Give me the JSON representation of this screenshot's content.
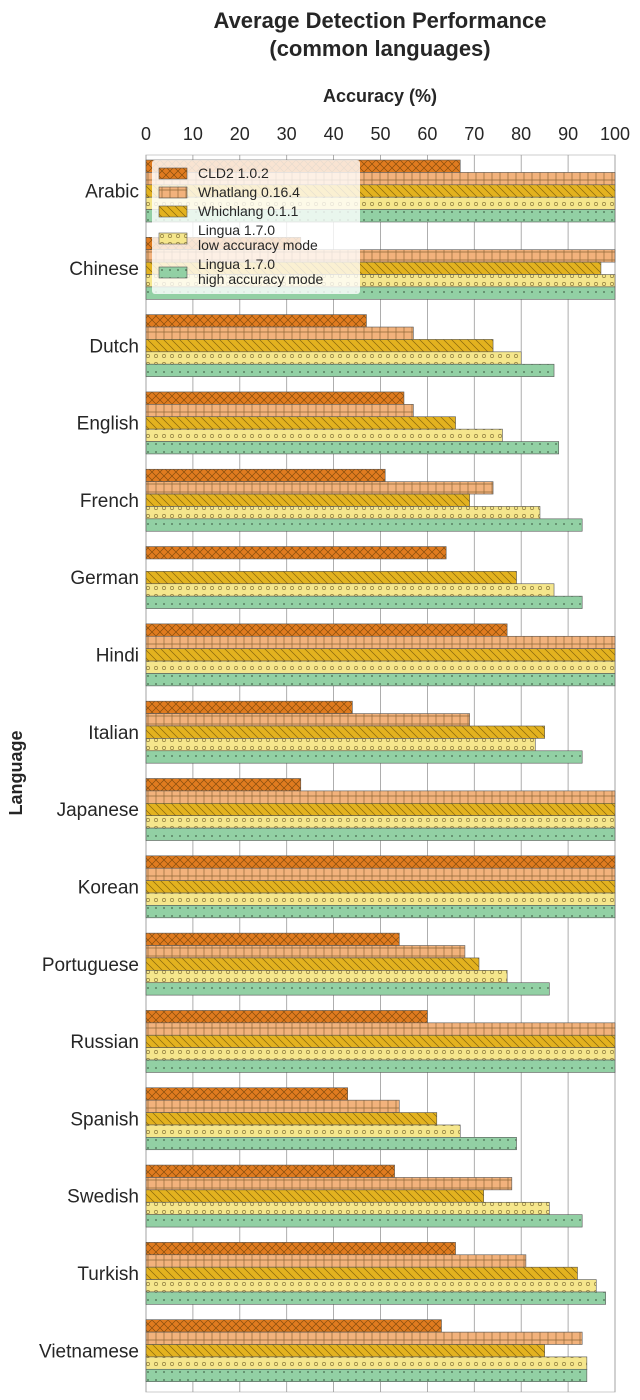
{
  "chart_data": {
    "type": "hbar",
    "title": "Average Detection Performance\n(common languages)",
    "x_label": "Accuracy (%)",
    "y_label": "Language",
    "categories": [
      "Arabic",
      "Chinese",
      "Dutch",
      "English",
      "French",
      "German",
      "Hindi",
      "Italian",
      "Japanese",
      "Korean",
      "Portuguese",
      "Russian",
      "Spanish",
      "Swedish",
      "Turkish",
      "Vietnamese"
    ],
    "series": [
      {
        "name": "CLD2 1.0.2",
        "color": "#e07b1f",
        "hatch": "x",
        "values": [
          67,
          33,
          47,
          55,
          51,
          64,
          77,
          44,
          33,
          100,
          54,
          60,
          43,
          53,
          66,
          63
        ]
      },
      {
        "name": "Whatlang 0.16.4",
        "color": "#f2b27c",
        "hatch": "+",
        "values": [
          100,
          100,
          57,
          57,
          74,
          null,
          100,
          69,
          100,
          100,
          68,
          100,
          54,
          78,
          81,
          93
        ]
      },
      {
        "name": "Whichlang 0.1.1",
        "color": "#e3b21f",
        "hatch": "\\",
        "values": [
          100,
          97,
          74,
          66,
          69,
          79,
          100,
          85,
          100,
          100,
          71,
          100,
          62,
          72,
          92,
          85
        ]
      },
      {
        "name": "Lingua 1.7.0\nlow accuracy mode",
        "color": "#f5e68c",
        "hatch": "o",
        "values": [
          100,
          100,
          80,
          76,
          84,
          87,
          100,
          83,
          100,
          100,
          77,
          100,
          67,
          86,
          96,
          94
        ]
      },
      {
        "name": "Lingua 1.7.0\nhigh accuracy mode",
        "color": "#92d0a4",
        "hatch": ".",
        "values": [
          100,
          100,
          87,
          88,
          93,
          93,
          100,
          93,
          100,
          100,
          86,
          100,
          79,
          93,
          98,
          94
        ]
      }
    ],
    "xlim": [
      0,
      100
    ],
    "xticks": [
      0,
      10,
      20,
      30,
      40,
      50,
      60,
      70,
      80,
      90,
      100
    ],
    "grid": true
  }
}
